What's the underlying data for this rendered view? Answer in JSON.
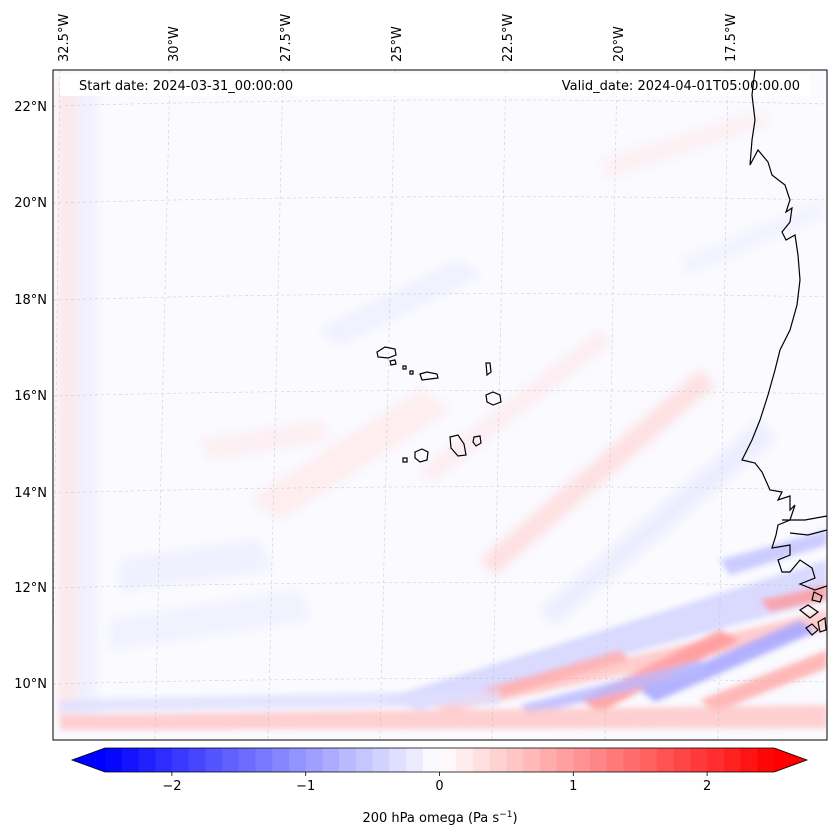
{
  "map": {
    "start_label": "Start date: 2024-03-31_00:00:00",
    "valid_label": "Valid_date: 2024-04-01T05:00:00.00",
    "lon_labels": [
      "32.5°W",
      "30°W",
      "27.5°W",
      "25°W",
      "22.5°W",
      "20°W",
      "17.5°W"
    ],
    "lat_labels": [
      "22°N",
      "20°N",
      "18°N",
      "16°N",
      "14°N",
      "12°N",
      "10°N"
    ],
    "variable": "200 hPa omega",
    "units": "Pa s",
    "units_exp": "−1",
    "colorbar": {
      "min": -2.5,
      "max": 2.5,
      "steps": 40,
      "ticks": [
        -2,
        -1,
        0,
        1,
        2
      ],
      "tick_labels": [
        "−2",
        "−1",
        "0",
        "1",
        "2"
      ],
      "colormap": "bwr",
      "neg_color": "#0000ff",
      "zero_color": "#ffffff",
      "pos_color": "#ff0000"
    }
  }
}
